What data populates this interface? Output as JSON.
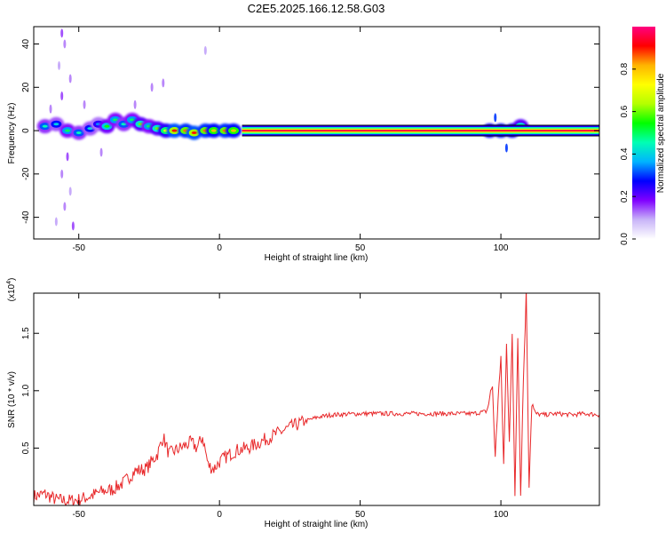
{
  "title": "C2E5.2025.166.12.58.G03",
  "colors": {
    "snr_line": "#e8282a",
    "frame": "#000000",
    "background": "#ffffff"
  },
  "chart_data": [
    {
      "type": "heatmap",
      "xlabel": "Height of straight line (km)",
      "ylabel": "Frequency (Hz)",
      "xlim": [
        -66,
        135
      ],
      "ylim": [
        -50,
        48
      ],
      "xticks": [
        -50,
        0,
        50,
        100
      ],
      "yticks": [
        -40,
        -20,
        0,
        20,
        40
      ],
      "colorbar": {
        "label": "Normalized spectral amplitude",
        "range": [
          0,
          1
        ],
        "ticks": [
          "0.0",
          "0.2",
          "0.4",
          "0.6",
          "0.8"
        ],
        "colors": [
          "#ffffff",
          "#c8b4f8",
          "#8000ff",
          "#0000ff",
          "#00b4ff",
          "#00ffb4",
          "#00ff00",
          "#b4ff00",
          "#ffff00",
          "#ffb400",
          "#ff0000",
          "#ff0080"
        ]
      },
      "ridge": {
        "frequency_hz": 0,
        "center_amplitude": 0.95,
        "x_start": 8,
        "x_end": 135,
        "note": "continuous high-amplitude tone at 0 Hz"
      },
      "blobs": [
        {
          "x": -62,
          "y": 2,
          "amp": 0.45
        },
        {
          "x": -58,
          "y": 3,
          "amp": 0.4
        },
        {
          "x": -54,
          "y": 0,
          "amp": 0.5
        },
        {
          "x": -50,
          "y": -1,
          "amp": 0.45
        },
        {
          "x": -46,
          "y": 1,
          "amp": 0.4
        },
        {
          "x": -43,
          "y": 3,
          "amp": 0.35
        },
        {
          "x": -40,
          "y": 2,
          "amp": 0.55
        },
        {
          "x": -37,
          "y": 5,
          "amp": 0.5
        },
        {
          "x": -34,
          "y": 3,
          "amp": 0.45
        },
        {
          "x": -31,
          "y": 5,
          "amp": 0.5
        },
        {
          "x": -28,
          "y": 3,
          "amp": 0.6
        },
        {
          "x": -25,
          "y": 2,
          "amp": 0.5
        },
        {
          "x": -22,
          "y": 1,
          "amp": 0.6
        },
        {
          "x": -19,
          "y": 0,
          "amp": 0.7
        },
        {
          "x": -16,
          "y": 0,
          "amp": 0.9
        },
        {
          "x": -12,
          "y": 0,
          "amp": 0.85
        },
        {
          "x": -9,
          "y": -1,
          "amp": 0.9
        },
        {
          "x": -5,
          "y": 0,
          "amp": 0.85
        },
        {
          "x": -2,
          "y": 0,
          "amp": 0.8
        },
        {
          "x": 2,
          "y": 0,
          "amp": 0.85
        },
        {
          "x": 5,
          "y": 0,
          "amp": 0.8
        },
        {
          "x": 96,
          "y": 0,
          "amp": 0.75
        },
        {
          "x": 100,
          "y": 0,
          "amp": 0.8
        },
        {
          "x": 104,
          "y": 0,
          "amp": 0.75
        },
        {
          "x": 107,
          "y": 2,
          "amp": 0.6
        }
      ],
      "scatter_noise": [
        {
          "x": -56,
          "y": 45,
          "amp": 0.15
        },
        {
          "x": -55,
          "y": 40,
          "amp": 0.12
        },
        {
          "x": -57,
          "y": 30,
          "amp": 0.1
        },
        {
          "x": -53,
          "y": 24,
          "amp": 0.12
        },
        {
          "x": -56,
          "y": 16,
          "amp": 0.15
        },
        {
          "x": -54,
          "y": -12,
          "amp": 0.15
        },
        {
          "x": -56,
          "y": -20,
          "amp": 0.12
        },
        {
          "x": -53,
          "y": -28,
          "amp": 0.1
        },
        {
          "x": -55,
          "y": -35,
          "amp": 0.12
        },
        {
          "x": -52,
          "y": -44,
          "amp": 0.15
        },
        {
          "x": -58,
          "y": -42,
          "amp": 0.1
        },
        {
          "x": -60,
          "y": 10,
          "amp": 0.12
        },
        {
          "x": -48,
          "y": 12,
          "amp": 0.12
        },
        {
          "x": -42,
          "y": -10,
          "amp": 0.12
        },
        {
          "x": -30,
          "y": 12,
          "amp": 0.12
        },
        {
          "x": -24,
          "y": 20,
          "amp": 0.12
        },
        {
          "x": -20,
          "y": 22,
          "amp": 0.12
        },
        {
          "x": -5,
          "y": 37,
          "amp": 0.1
        },
        {
          "x": 102,
          "y": -8,
          "amp": 0.3
        },
        {
          "x": 98,
          "y": 6,
          "amp": 0.3
        }
      ]
    },
    {
      "type": "line",
      "xlabel": "Height of straight line (km)",
      "ylabel": "SNR (10 * v/v)",
      "multiplier": "(x10",
      "multiplier_exponent": "4",
      "multiplier_close": ")",
      "xlim": [
        -66,
        135
      ],
      "ylim": [
        0,
        1.85
      ],
      "xticks": [
        -50,
        0,
        50,
        100
      ],
      "yticks": [
        0.5,
        1.0,
        1.5
      ],
      "ytick_labels": [
        "0.5",
        "1.0",
        "1.5"
      ],
      "series": [
        {
          "x": [
            -66,
            -62,
            -58,
            -54,
            -50,
            -46,
            -42,
            -38,
            -34,
            -30,
            -26,
            -22,
            -20,
            -18,
            -14,
            -10,
            -8,
            -6,
            -4,
            -2,
            0,
            2,
            6,
            10,
            15,
            20,
            25,
            30,
            35,
            40,
            50,
            60,
            70,
            80,
            90,
            95,
            97,
            98,
            99,
            100,
            101,
            102,
            103,
            104,
            105,
            106,
            107,
            108,
            109,
            110,
            111,
            112,
            115,
            120,
            125,
            130,
            135
          ],
          "y": [
            0.08,
            0.1,
            0.05,
            0.04,
            0.05,
            0.08,
            0.12,
            0.14,
            0.2,
            0.3,
            0.32,
            0.45,
            0.6,
            0.45,
            0.5,
            0.55,
            0.5,
            0.6,
            0.35,
            0.32,
            0.38,
            0.42,
            0.48,
            0.5,
            0.56,
            0.62,
            0.68,
            0.73,
            0.77,
            0.79,
            0.8,
            0.8,
            0.8,
            0.8,
            0.8,
            0.82,
            1.05,
            0.4,
            0.95,
            1.25,
            0.35,
            1.4,
            0.6,
            1.45,
            0.1,
            1.5,
            0.1,
            1.1,
            1.85,
            0.2,
            0.9,
            0.8,
            0.79,
            0.8,
            0.79,
            0.8,
            0.79
          ]
        }
      ]
    }
  ]
}
